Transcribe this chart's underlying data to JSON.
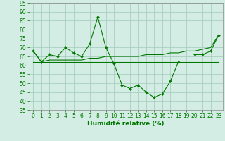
{
  "x": [
    0,
    1,
    2,
    3,
    4,
    5,
    6,
    7,
    8,
    9,
    10,
    11,
    12,
    13,
    14,
    15,
    16,
    17,
    18,
    19,
    20,
    21,
    22,
    23
  ],
  "line_main": [
    68,
    62,
    66,
    65,
    70,
    67,
    65,
    72,
    87,
    70,
    61,
    49,
    47,
    49,
    45,
    42,
    44,
    51,
    62,
    null,
    66,
    66,
    68,
    77
  ],
  "line_flat": [
    62,
    62,
    62,
    62,
    62,
    62,
    62,
    62,
    62,
    62,
    62,
    62,
    62,
    62,
    62,
    62,
    62,
    62,
    62,
    62,
    62,
    62,
    62,
    62
  ],
  "line_rising": [
    68,
    62,
    63,
    63,
    63,
    63,
    63,
    64,
    64,
    65,
    65,
    65,
    65,
    65,
    66,
    66,
    66,
    67,
    67,
    68,
    68,
    69,
    70,
    77
  ],
  "ylim": [
    35,
    95
  ],
  "yticks": [
    35,
    40,
    45,
    50,
    55,
    60,
    65,
    70,
    75,
    80,
    85,
    90,
    95
  ],
  "xlim": [
    -0.5,
    23.5
  ],
  "xticks": [
    0,
    1,
    2,
    3,
    4,
    5,
    6,
    7,
    8,
    9,
    10,
    11,
    12,
    13,
    14,
    15,
    16,
    17,
    18,
    19,
    20,
    21,
    22,
    23
  ],
  "xlabel": "Humidité relative (%)",
  "line_color": "#007700",
  "bg_color": "#d4ede4",
  "grid_color": "#a0c8b8",
  "xlabel_color": "#007700",
  "xlabel_fontsize": 6.5,
  "tick_fontsize": 5.5,
  "tick_color": "#007700",
  "marker": "D",
  "markersize": 2.0,
  "linewidth": 0.8
}
